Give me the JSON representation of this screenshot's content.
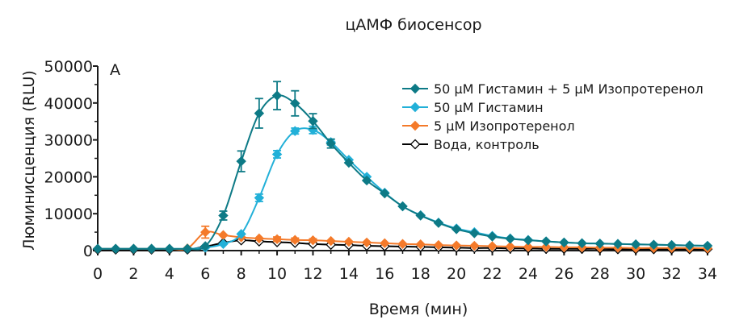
{
  "chart_data": {
    "type": "line",
    "title": "цАМФ биосенсор",
    "panel_label": "A",
    "xlabel": "Время (мин)",
    "ylabel": "Люминисценция (RLU)",
    "xlim": [
      0,
      34
    ],
    "ylim": [
      0,
      50000
    ],
    "xticks": [
      "0",
      "2",
      "4",
      "6",
      "8",
      "10",
      "12",
      "14",
      "16",
      "18",
      "20",
      "22",
      "24",
      "26",
      "28",
      "30",
      "32",
      "34"
    ],
    "yticks": [
      "0",
      "10000",
      "20000",
      "30000",
      "40000",
      "50000"
    ],
    "grid": false,
    "legend_position": "top-right",
    "series": [
      {
        "name": "50 μM Гистамин + 5 μM Изопротеренол",
        "color": "#0d7a86",
        "marker": "diamond-filled",
        "x": [
          0,
          1,
          2,
          3,
          4,
          5,
          6,
          7,
          8,
          9,
          10,
          11,
          12,
          13,
          14,
          15,
          16,
          17,
          18,
          19,
          20,
          21,
          22,
          23,
          24,
          25,
          26,
          27,
          28,
          29,
          30,
          31,
          32,
          33,
          34
        ],
        "y": [
          500,
          500,
          500,
          500,
          500,
          500,
          1200,
          9500,
          24200,
          37200,
          42000,
          39900,
          35100,
          29000,
          23800,
          19000,
          15500,
          12000,
          9500,
          7500,
          5800,
          4700,
          3800,
          3200,
          2800,
          2500,
          2200,
          2000,
          1900,
          1800,
          1700,
          1600,
          1500,
          1400,
          1300
        ],
        "err": [
          0,
          0,
          0,
          0,
          0,
          0,
          0,
          1200,
          2800,
          4000,
          3800,
          3400,
          2000,
          1200,
          0,
          0,
          0,
          0,
          0,
          0,
          0,
          0,
          0,
          0,
          0,
          0,
          0,
          0,
          0,
          0,
          0,
          0,
          0,
          0,
          0
        ]
      },
      {
        "name": "50 μM Гистамин",
        "color": "#22b0d8",
        "marker": "diamond-filled",
        "x": [
          0,
          1,
          2,
          3,
          4,
          5,
          6,
          7,
          8,
          9,
          10,
          11,
          12,
          13,
          14,
          15,
          16,
          17,
          18,
          19,
          20,
          21,
          22,
          23,
          24,
          25,
          26,
          27,
          28,
          29,
          30,
          31,
          32,
          33,
          34
        ],
        "y": [
          500,
          500,
          500,
          500,
          500,
          500,
          800,
          1800,
          4500,
          14300,
          26100,
          32400,
          32700,
          29400,
          24600,
          20000,
          15700,
          12000,
          9600,
          7600,
          6000,
          5000,
          4000,
          3300,
          2900,
          2500,
          2200,
          2000,
          1900,
          1800,
          1700,
          1600,
          1500,
          1400,
          1300
        ],
        "err": [
          0,
          0,
          0,
          0,
          0,
          0,
          0,
          0,
          0,
          1000,
          1000,
          800,
          1000,
          800,
          0,
          0,
          0,
          0,
          0,
          0,
          0,
          0,
          0,
          0,
          0,
          0,
          0,
          0,
          0,
          0,
          0,
          0,
          0,
          0,
          0
        ]
      },
      {
        "name": "5 μM Изопротеренол",
        "color": "#f47a2a",
        "marker": "diamond-filled",
        "x": [
          0,
          1,
          2,
          3,
          4,
          5,
          6,
          7,
          8,
          9,
          10,
          11,
          12,
          13,
          14,
          15,
          16,
          17,
          18,
          19,
          20,
          21,
          22,
          23,
          24,
          25,
          26,
          27,
          28,
          29,
          30,
          31,
          32,
          33,
          34
        ],
        "y": [
          500,
          500,
          500,
          500,
          500,
          600,
          5000,
          4200,
          3600,
          3300,
          3100,
          2900,
          2800,
          2600,
          2400,
          2200,
          2000,
          1800,
          1700,
          1500,
          1400,
          1300,
          1200,
          1100,
          1000,
          1000,
          900,
          900,
          800,
          800,
          700,
          700,
          700,
          700,
          600
        ],
        "err": [
          0,
          0,
          0,
          0,
          0,
          0,
          1600,
          0,
          0,
          0,
          600,
          500,
          400,
          0,
          0,
          0,
          0,
          0,
          0,
          0,
          0,
          0,
          0,
          0,
          0,
          0,
          0,
          0,
          0,
          0,
          0,
          0,
          0,
          0,
          0
        ]
      },
      {
        "name": "Вода, контроль",
        "color": "#000000",
        "marker": "diamond-open",
        "x": [
          0,
          1,
          2,
          3,
          4,
          5,
          6,
          7,
          8,
          9,
          10,
          11,
          12,
          13,
          14,
          15,
          16,
          17,
          18,
          19,
          20,
          21,
          22,
          23,
          24,
          25,
          26,
          27,
          28,
          29,
          30,
          31,
          32,
          33,
          34
        ],
        "y": [
          300,
          300,
          300,
          300,
          300,
          300,
          1100,
          2100,
          2800,
          2500,
          2300,
          2100,
          1800,
          1600,
          1500,
          1300,
          1200,
          1100,
          1000,
          900,
          800,
          700,
          700,
          600,
          600,
          500,
          500,
          500,
          500,
          400,
          400,
          400,
          400,
          400,
          400
        ],
        "err": [
          0,
          0,
          0,
          0,
          0,
          0,
          0,
          0,
          0,
          0,
          0,
          0,
          0,
          0,
          0,
          0,
          0,
          0,
          0,
          0,
          0,
          0,
          0,
          0,
          0,
          0,
          0,
          0,
          0,
          0,
          0,
          0,
          0,
          0,
          0
        ]
      }
    ]
  }
}
